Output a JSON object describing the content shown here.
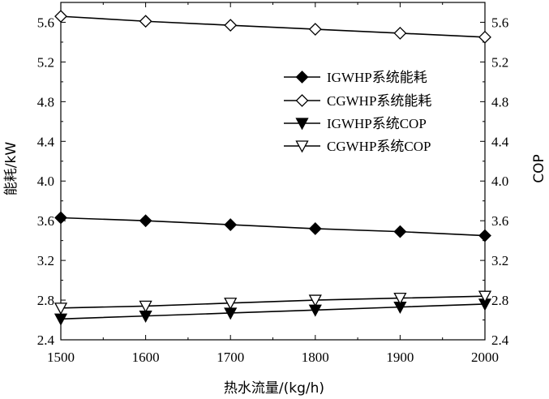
{
  "chart_data": {
    "type": "line",
    "x": [
      1500,
      1600,
      1700,
      1800,
      1900,
      2000
    ],
    "xlabel": "热水流量/(kg/h)",
    "ylabel_left": "能耗/kW",
    "ylabel_right": "COP",
    "xlim": [
      1500,
      2000
    ],
    "ylim_left": [
      2.4,
      5.8
    ],
    "ylim_right": [
      2.4,
      5.8
    ],
    "xticks": [
      "1500",
      "1600",
      "1700",
      "1800",
      "1900",
      "2000"
    ],
    "yticks_left": [
      "2.4",
      "2.8",
      "3.2",
      "3.6",
      "4.0",
      "4.4",
      "4.8",
      "5.2",
      "5.6"
    ],
    "yticks_right": [
      "2.4",
      "2.8",
      "3.2",
      "3.6",
      "4.0",
      "4.4",
      "4.8",
      "5.2",
      "5.6"
    ],
    "grid": false,
    "legend_position": "upper-right, inside plot area",
    "series": [
      {
        "name": "IGWHP系统能耗",
        "marker": "diamond-filled",
        "axis": "left",
        "values": [
          3.63,
          3.6,
          3.56,
          3.52,
          3.49,
          3.45
        ]
      },
      {
        "name": "CGWHP系统能耗",
        "marker": "diamond-open",
        "axis": "left",
        "values": [
          5.66,
          5.61,
          5.57,
          5.53,
          5.49,
          5.45
        ]
      },
      {
        "name": "IGWHP系统COP",
        "marker": "triangle-down-filled",
        "axis": "right",
        "values": [
          2.61,
          2.64,
          2.67,
          2.7,
          2.73,
          2.76
        ]
      },
      {
        "name": "CGWHP系统COP",
        "marker": "triangle-down-open",
        "axis": "right",
        "values": [
          2.72,
          2.74,
          2.77,
          2.8,
          2.82,
          2.84
        ]
      }
    ]
  }
}
